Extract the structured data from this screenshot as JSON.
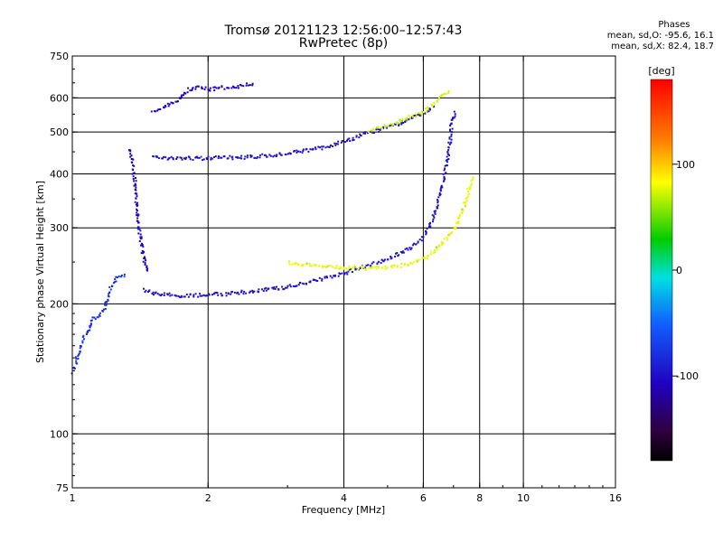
{
  "title": "Tromsø 20121123 12:56:00–12:57:43",
  "subtitle": "RwPretec (8p)",
  "stats": {
    "header": "Phases",
    "line_o": "mean, sd,O:  -95.6, 16.1",
    "line_x": "mean, sd,X:  82.4, 18.7"
  },
  "chart_data": {
    "type": "scatter",
    "xlabel": "Frequency [MHz]",
    "ylabel": "Stationary phase Virtual Height [km]",
    "x_scale": "log",
    "y_scale": "log",
    "xlim": [
      1,
      16
    ],
    "ylim": [
      75,
      750
    ],
    "x_ticks": [
      1,
      2,
      4,
      6,
      8,
      10,
      16
    ],
    "x_tick_labels": [
      "1",
      "2",
      "4",
      "6",
      "8",
      "10",
      "16"
    ],
    "x_gridlines": [
      2,
      4,
      6,
      8,
      10
    ],
    "y_ticks": [
      75,
      100,
      200,
      300,
      400,
      500,
      600,
      750
    ],
    "y_tick_labels": [
      "75",
      "100",
      "200",
      "300",
      "400",
      "500",
      "600",
      "750"
    ],
    "y_gridlines": [
      100,
      200,
      300,
      400,
      500,
      600
    ],
    "grid": true,
    "colorbar": {
      "label": "[deg]",
      "range": [
        -180,
        180
      ],
      "ticks": [
        100,
        0,
        -100
      ],
      "tick_labels": [
        "100",
        "0",
        "-100"
      ]
    },
    "series": [
      {
        "kind": "F2 O-mode trace",
        "color_phase": -100,
        "x": [
          1.43,
          1.5,
          1.6,
          1.7,
          1.8,
          1.9,
          2.0,
          2.2,
          2.5,
          3.0,
          3.5,
          4.0,
          4.5,
          5.0,
          5.5,
          6.0,
          6.3,
          6.6,
          6.8,
          6.9,
          7.0
        ],
        "y": [
          217,
          213,
          211,
          210,
          210,
          210,
          211,
          212,
          215,
          220,
          228,
          237,
          246,
          256,
          268,
          288,
          320,
          380,
          450,
          520,
          560
        ]
      },
      {
        "kind": "F2 X-mode trace",
        "color_phase": 90,
        "x": [
          3.0,
          3.5,
          4.0,
          4.5,
          5.0,
          5.5,
          6.0,
          6.5,
          7.0,
          7.3,
          7.5,
          7.6,
          7.7
        ],
        "y": [
          250,
          246,
          244,
          243,
          244,
          248,
          256,
          272,
          300,
          330,
          360,
          380,
          395
        ]
      },
      {
        "kind": "F2 second-hop O-mode trace",
        "color_phase": -100,
        "x": [
          1.5,
          1.6,
          1.8,
          2.0,
          2.2,
          2.5,
          3.0,
          3.5,
          4.0,
          4.5,
          5.0,
          5.5,
          6.0,
          6.3
        ],
        "y": [
          440,
          438,
          437,
          437,
          438,
          440,
          448,
          460,
          478,
          500,
          515,
          535,
          555,
          575
        ]
      },
      {
        "kind": "F2 second-hop X-mode trace",
        "color_phase": 85,
        "x": [
          4.5,
          5.0,
          5.5,
          6.0,
          6.3,
          6.6,
          6.8
        ],
        "y": [
          505,
          520,
          540,
          560,
          585,
          610,
          625
        ]
      },
      {
        "kind": "sporadic echoes 1.0-1.2 MHz",
        "color_phase": -80,
        "x": [
          1.0,
          1.02,
          1.05,
          1.08,
          1.1,
          1.15,
          1.18,
          1.2,
          1.25,
          1.3
        ],
        "y": [
          140,
          150,
          165,
          175,
          185,
          190,
          200,
          215,
          230,
          235
        ]
      },
      {
        "kind": "E-F1 cusp 1.3-1.45 MHz",
        "color_phase": -110,
        "x": [
          1.33,
          1.35,
          1.37,
          1.38,
          1.4,
          1.42,
          1.44,
          1.46
        ],
        "y": [
          460,
          430,
          390,
          340,
          300,
          270,
          250,
          240
        ]
      },
      {
        "kind": "upper fragments 1.6-2.5 MHz",
        "color_phase": -110,
        "x": [
          1.5,
          1.6,
          1.7,
          1.8,
          1.9,
          2.0,
          2.1,
          2.3,
          2.5
        ],
        "y": [
          560,
          575,
          590,
          630,
          640,
          630,
          635,
          640,
          650
        ]
      }
    ]
  }
}
